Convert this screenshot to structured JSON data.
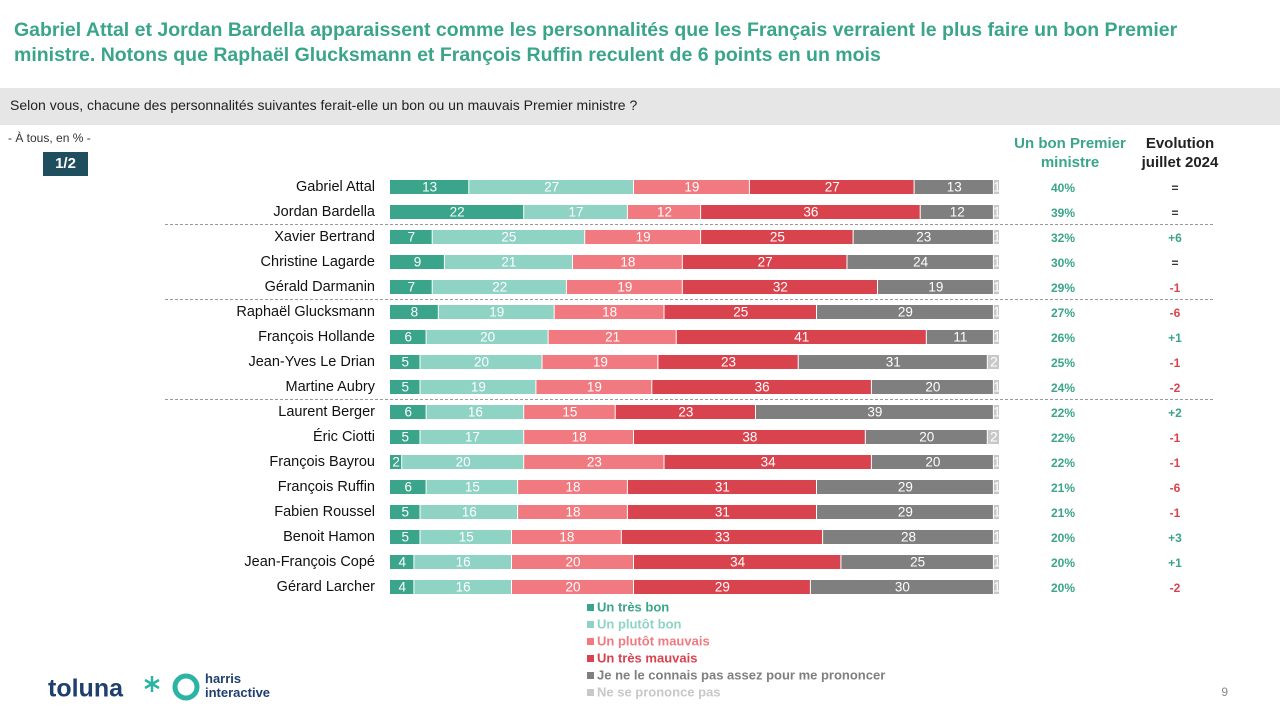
{
  "header": {
    "title": "Gabriel Attal et Jordan Bardella apparaissent comme les personnalités que les Français verraient le plus faire un bon Premier ministre. Notons que Raphaël Glucksmann et François Ruffin reculent de 6 points en un mois",
    "question": "Selon vous, chacune des personnalités suivantes ferait-elle un bon ou un mauvais Premier ministre ?",
    "base": "- À tous, en % -",
    "page_badge": "1/2"
  },
  "chart_data": {
    "type": "bar",
    "stacked": true,
    "orientation": "horizontal",
    "categories": [
      "Gabriel Attal",
      "Jordan Bardella",
      "Xavier Bertrand",
      "Christine Lagarde",
      "Gérald Darmanin",
      "Raphaël Glucksmann",
      "François Hollande",
      "Jean-Yves Le Drian",
      "Martine Aubry",
      "Laurent Berger",
      "Éric Ciotti",
      "François Bayrou",
      "François Ruffin",
      "Fabien Roussel",
      "Benoit Hamon",
      "Jean-François Copé",
      "Gérard Larcher"
    ],
    "series": [
      {
        "name": "Un très bon",
        "color": "#3aa58a",
        "values": [
          13,
          22,
          7,
          9,
          7,
          8,
          6,
          5,
          5,
          6,
          5,
          2,
          6,
          5,
          5,
          4,
          4
        ]
      },
      {
        "name": "Un plutôt bon",
        "color": "#8fd3c4",
        "values": [
          27,
          17,
          25,
          21,
          22,
          19,
          20,
          20,
          19,
          16,
          17,
          20,
          15,
          16,
          15,
          16,
          16
        ]
      },
      {
        "name": "Un plutôt mauvais",
        "color": "#f07a7f",
        "values": [
          19,
          12,
          19,
          18,
          19,
          18,
          21,
          19,
          19,
          15,
          18,
          23,
          18,
          18,
          18,
          20,
          20
        ]
      },
      {
        "name": "Un très mauvais",
        "color": "#d9434e",
        "values": [
          27,
          36,
          25,
          27,
          32,
          25,
          41,
          23,
          36,
          23,
          38,
          34,
          31,
          31,
          33,
          34,
          29
        ]
      },
      {
        "name": "Je ne le connais pas assez pour me prononcer",
        "color": "#7f7f7f",
        "values": [
          13,
          12,
          23,
          24,
          19,
          29,
          11,
          31,
          20,
          39,
          20,
          20,
          29,
          29,
          28,
          25,
          30
        ]
      },
      {
        "name": "Ne se prononce pas",
        "color": "#c8c8c8",
        "values": [
          1,
          1,
          1,
          1,
          1,
          1,
          1,
          2,
          1,
          1,
          2,
          1,
          1,
          1,
          1,
          1,
          1
        ]
      }
    ],
    "xlim": [
      0,
      100
    ],
    "separators_after": [
      1,
      4,
      8
    ],
    "legend_position": "bottom"
  },
  "columns": [
    {
      "title": "Un bon Premier ministre",
      "color": "#3aa58a",
      "values": [
        40,
        39,
        32,
        30,
        29,
        27,
        26,
        25,
        24,
        22,
        22,
        22,
        21,
        21,
        20,
        20,
        20
      ],
      "value_labels": [
        "40%",
        "39%",
        "32%",
        "30%",
        "29%",
        "27%",
        "26%",
        "25%",
        "24%",
        "22%",
        "22%",
        "22%",
        "21%",
        "21%",
        "20%",
        "20%",
        "20%"
      ]
    },
    {
      "title": "Evolution juillet 2024",
      "labels": [
        "=",
        "=",
        "+6",
        "=",
        "-1",
        "-6",
        "+1",
        "-1",
        "-2",
        "+2",
        "-1",
        "-1",
        "-6",
        "-1",
        "+3",
        "+1",
        "-2"
      ]
    }
  ],
  "footer": {
    "logo_toluna": "toluna",
    "logo_harris": "harris interactive",
    "page_number": 9
  }
}
